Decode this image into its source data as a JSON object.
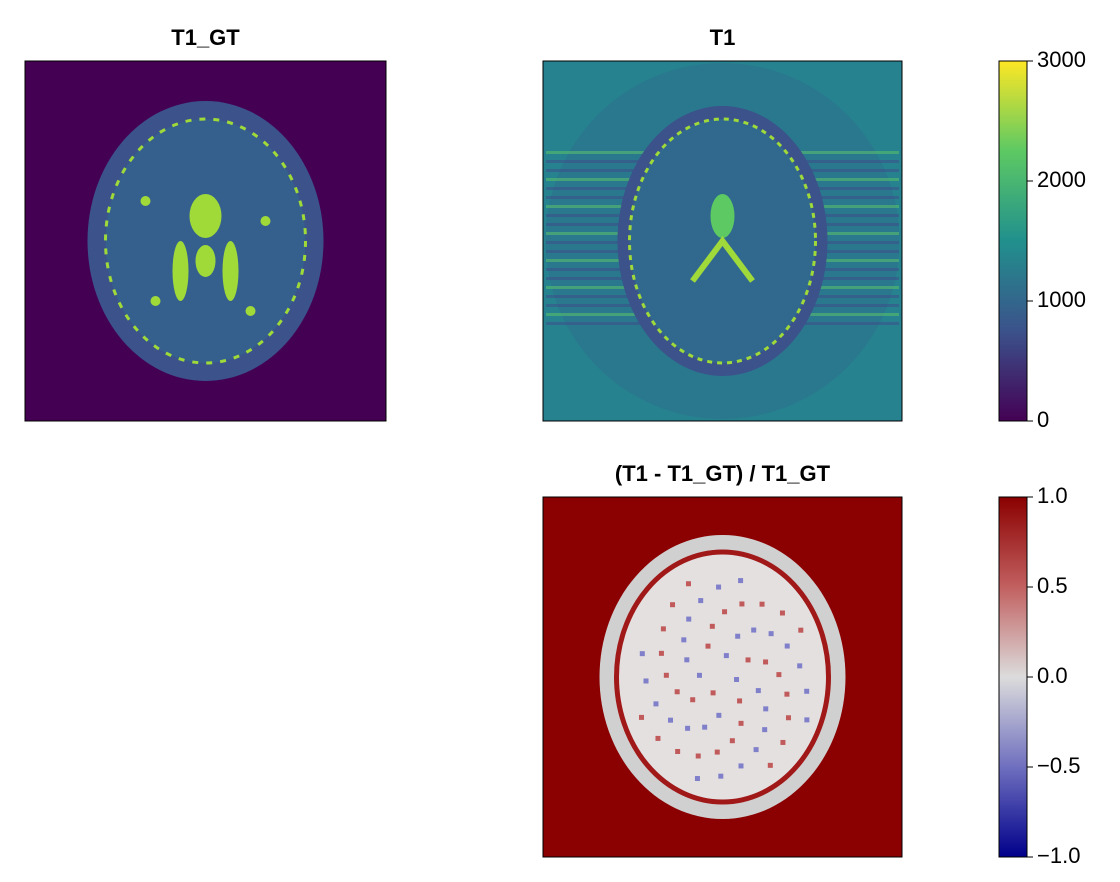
{
  "chart_data": [
    {
      "type": "heatmap",
      "title": "T1_GT",
      "color": "#440154"
    },
    {
      "type": "heatmap",
      "title": "T1",
      "color": "#26828e",
      "colorbar": {
        "zlim": [
          0,
          3000
        ],
        "zticks": [
          0,
          1000,
          2000,
          3000
        ],
        "colorscale": [
          "#440154",
          "#3b528b",
          "#21908d",
          "#5dc963",
          "#fde725"
        ]
      }
    },
    {
      "type": "heatmap",
      "title": "(T1 - T1_GT) / T1_GT",
      "color": "#8b0000",
      "colorbar": {
        "zlim": [
          -1,
          1
        ],
        "zticks": [
          {
            "value": -1,
            "label": "−1.0"
          },
          {
            "value": -0.5,
            "label": "−0.5"
          },
          {
            "value": 0,
            "label": "0.0"
          },
          0.5,
          {
            "value": 1,
            "label": "1.0"
          }
        ],
        "colorscale": [
          "#00008b",
          "#6f6fbf",
          "#dcdcdc",
          "#c26060",
          "#8b0000"
        ]
      }
    }
  ]
}
